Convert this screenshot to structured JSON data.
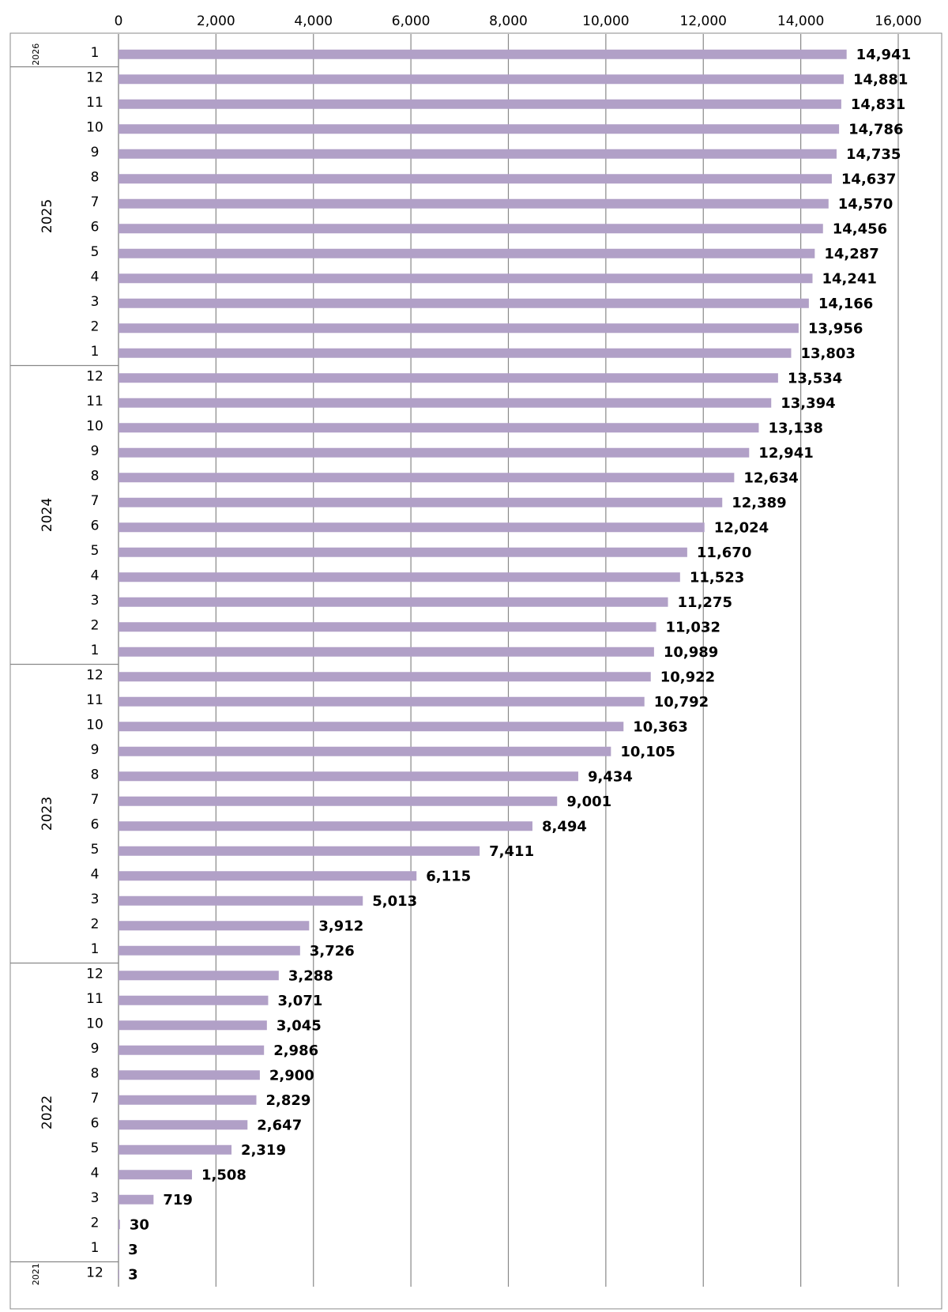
{
  "chart_data": {
    "type": "bar",
    "orientation": "horizontal",
    "color": "#b1a0c7",
    "grid": true,
    "xlim": [
      0,
      16000
    ],
    "xticks": [
      0,
      {
        "value": 2000,
        "label": "2,000"
      },
      {
        "value": 4000,
        "label": "4,000"
      },
      {
        "value": 6000,
        "label": "6,000"
      },
      {
        "value": 8000,
        "label": "8,000"
      },
      {
        "value": 10000,
        "label": "10,000"
      },
      {
        "value": 12000,
        "label": "12,000"
      },
      {
        "value": 14000,
        "label": "14,000"
      },
      {
        "value": 16000,
        "label": "16,000"
      }
    ],
    "groups": [
      {
        "name": "2026",
        "categories": [
          "1"
        ],
        "values": [
          14941
        ],
        "value_labels": [
          "14,941"
        ]
      },
      {
        "name": "2025",
        "categories": [
          "12",
          "11",
          "10",
          "9",
          "8",
          "7",
          "6",
          "5",
          "4",
          "3",
          "2",
          "1"
        ],
        "values": [
          14881,
          14831,
          14786,
          14735,
          14637,
          14570,
          14456,
          14287,
          14241,
          14166,
          13956,
          13803
        ],
        "value_labels": [
          "14,881",
          "14,831",
          "14,786",
          "14,735",
          "14,637",
          "14,570",
          "14,456",
          "14,287",
          "14,241",
          "14,166",
          "13,956",
          "13,803"
        ]
      },
      {
        "name": "2024",
        "categories": [
          "12",
          "11",
          "10",
          "9",
          "8",
          "7",
          "6",
          "5",
          "4",
          "3",
          "2",
          "1"
        ],
        "values": [
          13534,
          13394,
          13138,
          12941,
          12634,
          12389,
          12024,
          11670,
          11523,
          11275,
          11032,
          10989
        ],
        "value_labels": [
          "13,534",
          "13,394",
          "13,138",
          "12,941",
          "12,634",
          "12,389",
          "12,024",
          "11,670",
          "11,523",
          "11,275",
          "11,032",
          "10,989"
        ]
      },
      {
        "name": "2023",
        "categories": [
          "12",
          "11",
          "10",
          "9",
          "8",
          "7",
          "6",
          "5",
          "4",
          "3",
          "2",
          "1"
        ],
        "values": [
          10922,
          10792,
          10363,
          10105,
          9434,
          9001,
          8494,
          7411,
          6115,
          5013,
          3912,
          3726
        ],
        "value_labels": [
          "10,922",
          "10,792",
          "10,363",
          "10,105",
          "9,434",
          "9,001",
          "8,494",
          "7,411",
          "6,115",
          "5,013",
          "3,912",
          "3,726"
        ]
      },
      {
        "name": "2022",
        "categories": [
          "12",
          "11",
          "10",
          "9",
          "8",
          "7",
          "6",
          "5",
          "4",
          "3",
          "2",
          "1"
        ],
        "values": [
          3288,
          3071,
          3045,
          2986,
          2900,
          2829,
          2647,
          2319,
          1508,
          719,
          30,
          3
        ],
        "value_labels": [
          "3,288",
          "3,071",
          "3,045",
          "2,986",
          "2,900",
          "2,829",
          "2,647",
          "2,319",
          "1,508",
          "719",
          "30",
          "3"
        ]
      },
      {
        "name": "2021",
        "categories": [
          "12"
        ],
        "values": [
          3
        ],
        "value_labels": [
          "3"
        ]
      }
    ]
  }
}
